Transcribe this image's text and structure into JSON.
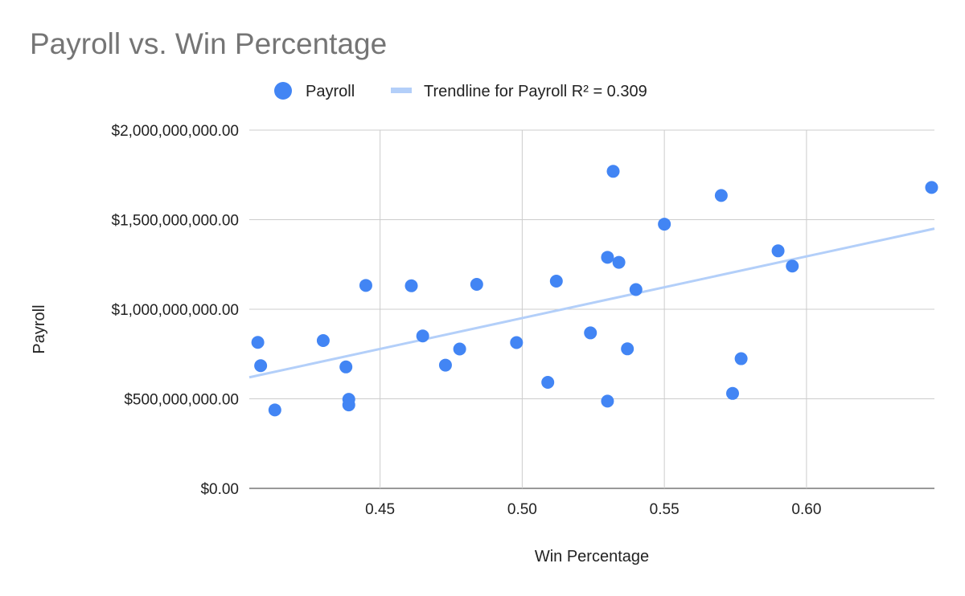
{
  "chart_data": {
    "type": "scatter",
    "title": "Payroll vs. Win Percentage",
    "xlabel": "Win Percentage",
    "ylabel": "Payroll",
    "xlim": [
      0.404,
      0.645
    ],
    "ylim": [
      0,
      2000000000
    ],
    "x_ticks": [
      0.45,
      0.5,
      0.55,
      0.6
    ],
    "x_tick_labels": [
      "0.45",
      "0.50",
      "0.55",
      "0.60"
    ],
    "y_ticks": [
      0,
      500000000,
      1000000000,
      1500000000,
      2000000000
    ],
    "y_tick_labels": [
      "$0.00",
      "$500,000,000.00",
      "$1,000,000,000.00",
      "$1,500,000,000.00",
      "$2,000,000,000.00"
    ],
    "grid": true,
    "legend_position": "top",
    "series": [
      {
        "name": "Payroll",
        "color": "#4285f4",
        "points": [
          [
            0.407,
            815000000
          ],
          [
            0.408,
            685000000
          ],
          [
            0.413,
            438000000
          ],
          [
            0.43,
            825000000
          ],
          [
            0.438,
            678000000
          ],
          [
            0.439,
            497000000
          ],
          [
            0.439,
            466000000
          ],
          [
            0.445,
            1133000000
          ],
          [
            0.461,
            1131000000
          ],
          [
            0.465,
            851000000
          ],
          [
            0.473,
            688000000
          ],
          [
            0.478,
            778000000
          ],
          [
            0.484,
            1139000000
          ],
          [
            0.498,
            814000000
          ],
          [
            0.509,
            592000000
          ],
          [
            0.512,
            1157000000
          ],
          [
            0.524,
            868000000
          ],
          [
            0.53,
            1290000000
          ],
          [
            0.53,
            487000000
          ],
          [
            0.532,
            1770000000
          ],
          [
            0.534,
            1262000000
          ],
          [
            0.537,
            779000000
          ],
          [
            0.54,
            1110000000
          ],
          [
            0.55,
            1475000000
          ],
          [
            0.57,
            1635000000
          ],
          [
            0.574,
            530000000
          ],
          [
            0.577,
            724000000
          ],
          [
            0.59,
            1326000000
          ],
          [
            0.595,
            1241000000
          ],
          [
            0.644,
            1680000000
          ]
        ]
      }
    ],
    "trendline": {
      "name": "Trendline for Payroll R² = 0.309",
      "color": "#b3cff9",
      "points": [
        [
          0.404,
          620000000
        ],
        [
          0.645,
          1450000000
        ]
      ]
    }
  }
}
